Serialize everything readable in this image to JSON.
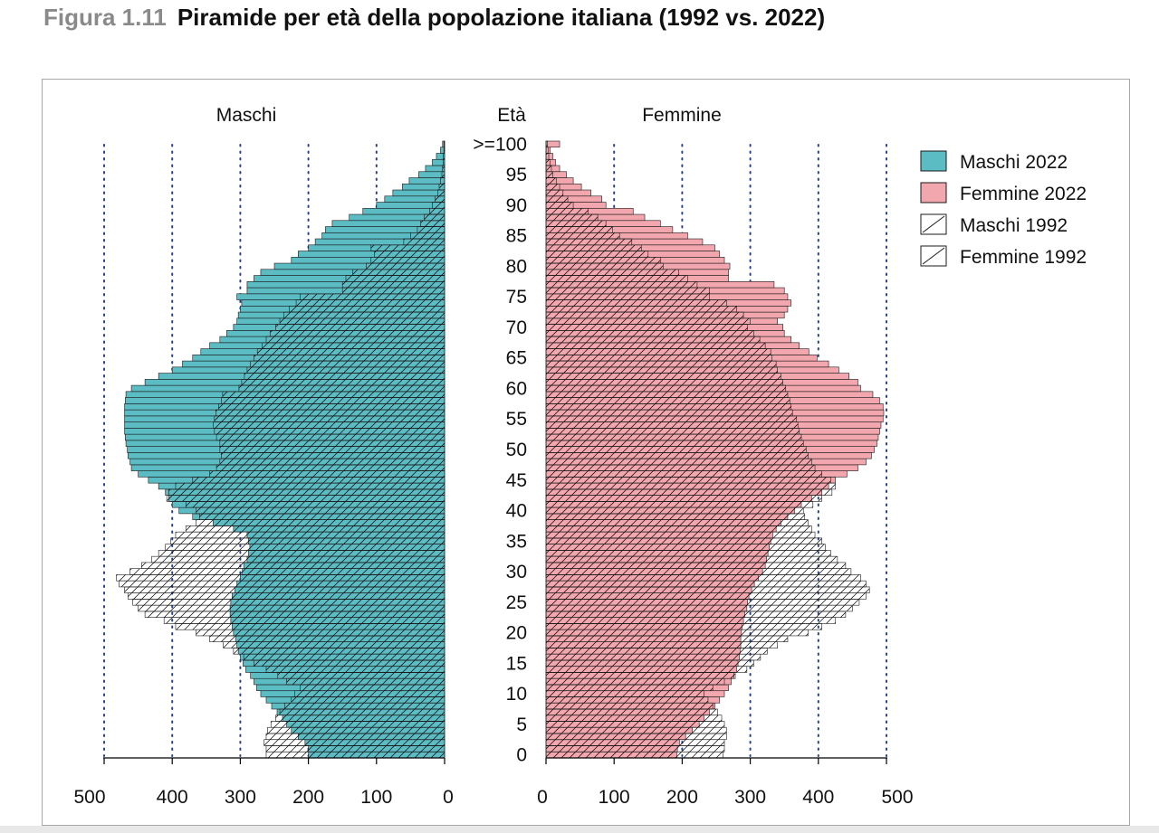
{
  "figure": {
    "number": "Figura 1.11",
    "title": "Piramide per età della popolazione italiana (1992 vs. 2022)"
  },
  "chart_data": {
    "type": "bar",
    "orientation": "horizontal",
    "pyramid": true,
    "units_note": "",
    "left_panel_label": "Maschi",
    "right_panel_label": "Femmine",
    "age_axis_label": "Età",
    "age_ticks": [
      "0",
      "5",
      "10",
      "15",
      "20",
      "25",
      "30",
      "35",
      "40",
      "45",
      "50",
      "55",
      "60",
      "65",
      "70",
      "75",
      "80",
      "85",
      "90",
      "95",
      ">=100"
    ],
    "x_ticks": [
      0,
      100,
      200,
      300,
      400,
      500
    ],
    "xlim": [
      0,
      500
    ],
    "grid": "vertical dotted at 100,200,300,400,500",
    "legend_position": "right",
    "age_groups_note": "single-year ages 0 to 99, last group >=100",
    "series": [
      {
        "name": "Maschi 2022",
        "side": "left",
        "style": "filled",
        "color": "#5bbcc4",
        "values": [
          200,
          200,
          205,
          215,
          225,
          232,
          238,
          246,
          254,
          262,
          270,
          276,
          280,
          285,
          292,
          296,
          300,
          303,
          305,
          307,
          310,
          312,
          314,
          315,
          315,
          314,
          312,
          308,
          305,
          300,
          297,
          295,
          290,
          288,
          286,
          288,
          290,
          310,
          340,
          370,
          390,
          400,
          405,
          410,
          420,
          435,
          450,
          460,
          462,
          465,
          466,
          468,
          469,
          470,
          470,
          470,
          470,
          470,
          469,
          468,
          460,
          440,
          420,
          400,
          385,
          370,
          358,
          345,
          330,
          320,
          310,
          305,
          303,
          300,
          298,
          305,
          290,
          290,
          280,
          270,
          250,
          225,
          215,
          200,
          190,
          180,
          175,
          165,
          140,
          120,
          100,
          88,
          76,
          62,
          52,
          38,
          28,
          18,
          12,
          6,
          3
        ]
      },
      {
        "name": "Femmine 2022",
        "side": "right",
        "style": "filled",
        "color": "#f2a6ad",
        "values": [
          192,
          193,
          196,
          205,
          215,
          225,
          232,
          240,
          248,
          255,
          262,
          268,
          272,
          276,
          280,
          282,
          284,
          285,
          286,
          286,
          287,
          288,
          290,
          292,
          295,
          296,
          298,
          302,
          306,
          312,
          318,
          322,
          324,
          326,
          328,
          330,
          333,
          338,
          345,
          355,
          365,
          375,
          390,
          405,
          415,
          425,
          442,
          458,
          470,
          478,
          482,
          486,
          488,
          490,
          492,
          495,
          496,
          495,
          490,
          480,
          462,
          458,
          445,
          430,
          415,
          398,
          386,
          372,
          360,
          350,
          348,
          340,
          350,
          355,
          360,
          355,
          350,
          335,
          268,
          268,
          270,
          262,
          255,
          248,
          230,
          208,
          186,
          168,
          145,
          128,
          88,
          82,
          66,
          52,
          40,
          30,
          20,
          14,
          10,
          6,
          20
        ]
      },
      {
        "name": "Maschi 1992",
        "side": "left",
        "style": "hatched",
        "color": "#000000",
        "values": [
          262,
          262,
          265,
          262,
          260,
          255,
          248,
          242,
          235,
          225,
          220,
          212,
          232,
          245,
          262,
          280,
          295,
          310,
          325,
          345,
          365,
          395,
          412,
          440,
          450,
          458,
          465,
          470,
          478,
          482,
          462,
          445,
          430,
          420,
          410,
          402,
          395,
          380,
          365,
          360,
          365,
          380,
          408,
          405,
          395,
          370,
          345,
          335,
          330,
          328,
          330,
          330,
          335,
          338,
          340,
          338,
          336,
          332,
          328,
          326,
          302,
          298,
          294,
          290,
          285,
          280,
          275,
          268,
          262,
          256,
          248,
          242,
          236,
          228,
          218,
          212,
          150,
          150,
          145,
          135,
          115,
          108,
          103,
          108,
          60,
          50,
          40,
          35,
          30,
          22,
          18,
          14,
          10,
          8,
          6,
          4,
          3,
          2,
          2,
          1,
          1
        ]
      },
      {
        "name": "Femmine 1992",
        "side": "right",
        "style": "hatched",
        "color": "#000000",
        "values": [
          260,
          262,
          262,
          265,
          265,
          262,
          258,
          252,
          245,
          238,
          232,
          245,
          262,
          278,
          295,
          305,
          315,
          325,
          340,
          355,
          385,
          405,
          425,
          440,
          450,
          460,
          470,
          475,
          470,
          462,
          448,
          440,
          428,
          418,
          410,
          405,
          395,
          390,
          385,
          380,
          378,
          392,
          405,
          420,
          425,
          418,
          405,
          395,
          390,
          385,
          382,
          378,
          375,
          372,
          370,
          368,
          362,
          360,
          358,
          355,
          352,
          348,
          345,
          340,
          338,
          332,
          330,
          322,
          314,
          305,
          296,
          300,
          290,
          280,
          265,
          240,
          240,
          222,
          208,
          195,
          172,
          168,
          150,
          140,
          126,
          108,
          98,
          88,
          76,
          62,
          40,
          32,
          25,
          20,
          15,
          10,
          8,
          6,
          4,
          3,
          2
        ]
      }
    ]
  }
}
